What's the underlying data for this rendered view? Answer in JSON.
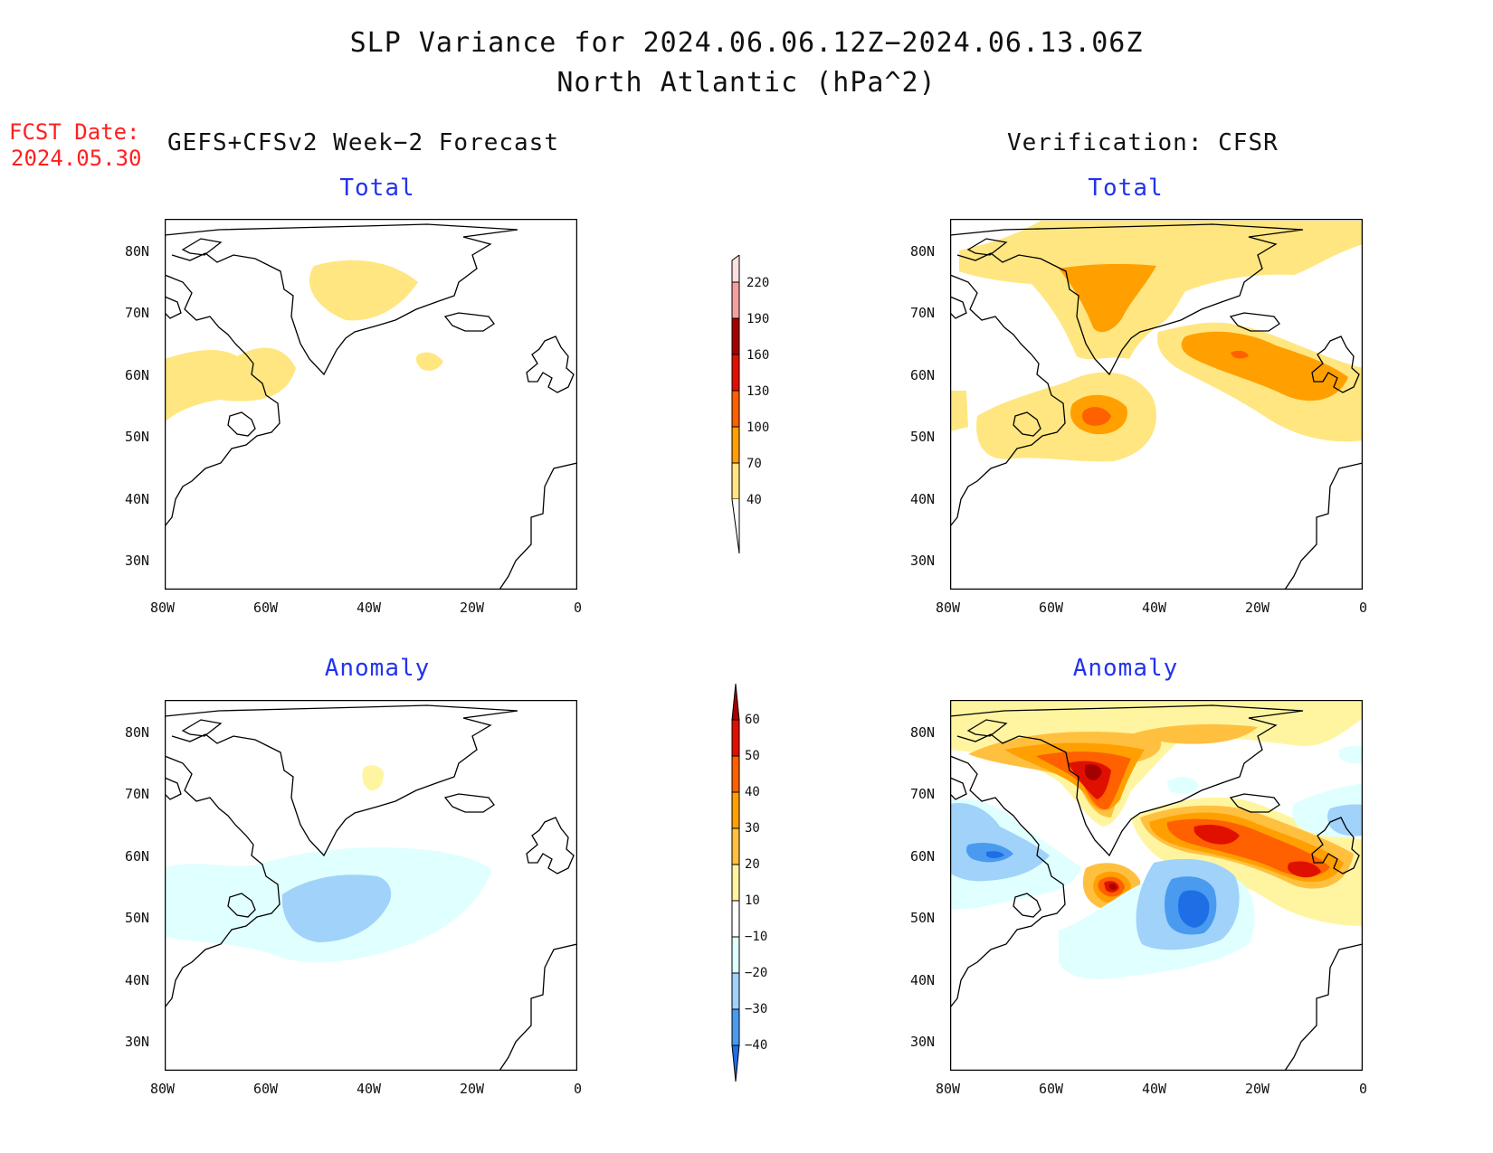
{
  "title": {
    "line1": "SLP Variance for 2024.06.06.12Z−2024.06.13.06Z",
    "line2": "North Atlantic (hPa^2)"
  },
  "fcst_date": {
    "label": "FCST Date:",
    "value": "2024.05.30"
  },
  "columns": {
    "left": "GEFS+CFSv2 Week−2 Forecast",
    "right": "Verification: CFSR"
  },
  "panels": {
    "forecast_total_title": "Total",
    "verification_total_title": "Total",
    "forecast_anomaly_title": "Anomaly",
    "verification_anomaly_title": "Anomaly"
  },
  "axes": {
    "lon_ticks": [
      "80W",
      "60W",
      "40W",
      "20W",
      "0"
    ],
    "lat_ticks": [
      "80N",
      "70N",
      "60N",
      "50N",
      "40N",
      "30N"
    ],
    "lon_range": [
      -80,
      0
    ],
    "lat_range": [
      25,
      85
    ]
  },
  "colorbars": {
    "total": {
      "levels": [
        "40",
        "70",
        "100",
        "130",
        "160",
        "190",
        "220"
      ],
      "colors": [
        "#ffe680",
        "#ffa000",
        "#ff6000",
        "#e01000",
        "#a50000",
        "#f4a0a0",
        "#fde0e0"
      ]
    },
    "anomaly": {
      "levels": [
        "60",
        "50",
        "40",
        "30",
        "20",
        "10",
        "−10",
        "−20",
        "−30",
        "−40"
      ],
      "colors": [
        "#a50000",
        "#e01000",
        "#ff6000",
        "#ffa000",
        "#ffc040",
        "#fff5a0",
        "#ffffff",
        "#e0ffff",
        "#a0d2fa",
        "#4a9af0",
        "#1e6ee6",
        "#1060d0"
      ]
    }
  }
}
